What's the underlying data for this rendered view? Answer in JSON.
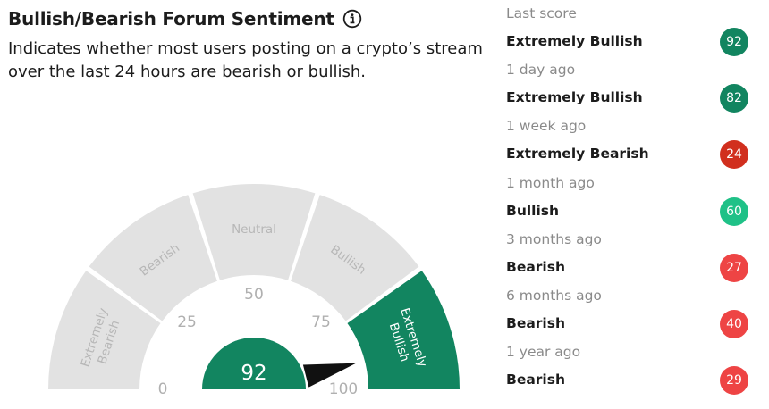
{
  "header": {
    "title": "Bullish/Bearish Forum Sentiment",
    "description": "Indicates whether most users posting on a crypto’s stream over the last 24 hours are bearish or bullish."
  },
  "gauge": {
    "score": "92",
    "score_value": 92,
    "min": 0,
    "max": 100,
    "ticks": [
      {
        "label": "0",
        "value": 0
      },
      {
        "label": "25",
        "value": 25
      },
      {
        "label": "50",
        "value": 50
      },
      {
        "label": "75",
        "value": 75
      },
      {
        "label": "100",
        "value": 100
      }
    ],
    "segments": [
      {
        "line1": "Extremely",
        "line2": "Bearish",
        "active": false
      },
      {
        "line1": "Bearish",
        "line2": "",
        "active": false
      },
      {
        "line1": "Neutral",
        "line2": "",
        "active": false
      },
      {
        "line1": "Bullish",
        "line2": "",
        "active": false
      },
      {
        "line1": "Extremely",
        "line2": "Bullish",
        "active": true
      }
    ],
    "colors": {
      "inactive": "#e2e2e2",
      "inactive_text": "#b7b7b7",
      "active": "#128560",
      "active_text": "#ffffff",
      "tick_text": "#b0b0b0",
      "needle": "#111111"
    }
  },
  "history": [
    {
      "period": "Last score",
      "label": "Extremely Bullish",
      "score": "92",
      "color": "#128560"
    },
    {
      "period": "1 day ago",
      "label": "Extremely Bullish",
      "score": "82",
      "color": "#128560"
    },
    {
      "period": "1 week ago",
      "label": "Extremely Bearish",
      "score": "24",
      "color": "#d12f1e"
    },
    {
      "period": "1 month ago",
      "label": "Bullish",
      "score": "60",
      "color": "#1fc187"
    },
    {
      "period": "3 months ago",
      "label": "Bearish",
      "score": "27",
      "color": "#ee4444"
    },
    {
      "period": "6 months ago",
      "label": "Bearish",
      "score": "40",
      "color": "#ee4444"
    },
    {
      "period": "1 year ago",
      "label": "Bearish",
      "score": "29",
      "color": "#ee4444"
    }
  ]
}
